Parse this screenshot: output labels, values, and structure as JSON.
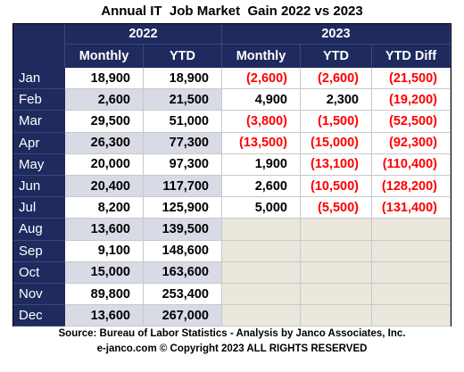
{
  "title": "Annual IT  Job Market  Gain 2022 vs 2023",
  "table": {
    "years": [
      "2022",
      "2023"
    ],
    "columns": [
      "Monthly",
      "YTD",
      "Monthly",
      "YTD",
      "YTD Diff"
    ],
    "rows": [
      [
        "Jan",
        "18,900",
        "18,900",
        "(2,600)",
        "(2,600)",
        "(21,500)"
      ],
      [
        "Feb",
        "2,600",
        "21,500",
        "4,900",
        "2,300",
        "(19,200)"
      ],
      [
        "Mar",
        "29,500",
        "51,000",
        "(3,800)",
        "(1,500)",
        "(52,500)"
      ],
      [
        "Apr",
        "26,300",
        "77,300",
        "(13,500)",
        "(15,000)",
        "(92,300)"
      ],
      [
        "May",
        "20,000",
        "97,300",
        "1,900",
        "(13,100)",
        "(110,400)"
      ],
      [
        "Jun",
        "20,400",
        "117,700",
        "2,600",
        "(10,500)",
        "(128,200)"
      ],
      [
        "Jul",
        "8,200",
        "125,900",
        "5,000",
        "(5,500)",
        "(131,400)"
      ],
      [
        "Aug",
        "13,600",
        "139,500"
      ],
      [
        "Sep",
        "9,100",
        "148,600"
      ],
      [
        "Oct",
        "15,000",
        "163,600"
      ],
      [
        "Nov",
        "89,800",
        "253,400"
      ],
      [
        "Dec",
        "13,600",
        "267,000"
      ]
    ]
  },
  "footer": [
    "Source: Bureau of Labor Statistics - Analysis by Janco Associates, Inc.",
    "e-janco.com © Copyright 2023 ALL RIGHTS RESERVED"
  ]
}
